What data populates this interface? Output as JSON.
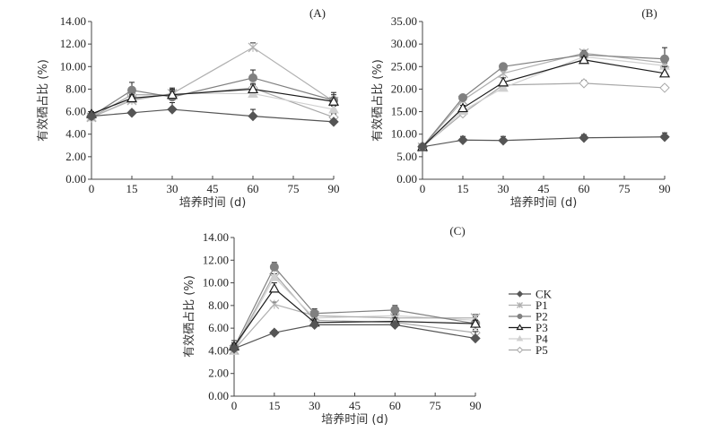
{
  "legend": {
    "entries": [
      {
        "name": "CK",
        "label": "CK",
        "marker": "diamond-filled",
        "color": "#555555"
      },
      {
        "name": "P1",
        "label": "P1",
        "marker": "cross",
        "color": "#b0b0b0"
      },
      {
        "name": "P2",
        "label": "P2",
        "marker": "circle-filled",
        "color": "#808080"
      },
      {
        "name": "P3",
        "label": "P3",
        "marker": "triangle-open",
        "color": "#1a1a1a"
      },
      {
        "name": "P4",
        "label": "P4",
        "marker": "triangle-filled",
        "color": "#d0d0d0"
      },
      {
        "name": "P5",
        "label": "P5",
        "marker": "diamond-open",
        "color": "#a8a8a8"
      }
    ]
  },
  "chart_data": [
    {
      "type": "line",
      "panel": "(A)",
      "title": "",
      "xlabel": "培养时间 (d)",
      "ylabel": "有效硒占比 (%)",
      "x": [
        0,
        15,
        30,
        60,
        90
      ],
      "xticks": [
        0,
        15,
        30,
        45,
        60,
        75,
        90
      ],
      "xtick_labels": [
        "0",
        "15",
        "30",
        "45",
        "60",
        "75",
        "90"
      ],
      "xlim": [
        0,
        90
      ],
      "ylim": [
        0,
        14
      ],
      "yticks": [
        0,
        2,
        4,
        6,
        8,
        10,
        12,
        14
      ],
      "ytick_labels": [
        "0.00",
        "2.00",
        "4.00",
        "6.00",
        "8.00",
        "10.00",
        "12.00",
        "14.00"
      ],
      "grid": false,
      "series": [
        {
          "name": "CK",
          "values": [
            5.6,
            5.9,
            6.2,
            5.6,
            5.1
          ],
          "errors": [
            0.3,
            0.2,
            0.6,
            0.6,
            0.2
          ]
        },
        {
          "name": "P1",
          "values": [
            5.5,
            7.0,
            7.6,
            11.7,
            6.9
          ],
          "errors": [
            0.2,
            0.4,
            0.4,
            0.4,
            0.3
          ]
        },
        {
          "name": "P2",
          "values": [
            5.6,
            7.9,
            7.3,
            9.0,
            7.0
          ],
          "errors": [
            0.2,
            0.7,
            0.8,
            0.7,
            0.5
          ]
        },
        {
          "name": "P3",
          "values": [
            5.8,
            7.2,
            7.5,
            8.0,
            6.9
          ],
          "errors": [
            0.2,
            0.3,
            0.3,
            0.5,
            0.8
          ]
        },
        {
          "name": "P4",
          "values": [
            5.5,
            7.1,
            7.6,
            7.6,
            6.2
          ],
          "errors": [
            0.2,
            0.3,
            0.3,
            0.3,
            0.3
          ]
        },
        {
          "name": "P5",
          "values": [
            5.5,
            7.5,
            7.5,
            8.1,
            5.5
          ],
          "errors": [
            0.2,
            0.3,
            0.3,
            0.3,
            0.3
          ]
        }
      ]
    },
    {
      "type": "line",
      "panel": "(B)",
      "title": "",
      "xlabel": "培养时间 (d)",
      "ylabel": "有效硒占比 (%)",
      "x": [
        0,
        15,
        30,
        60,
        90
      ],
      "xticks": [
        0,
        15,
        30,
        45,
        60,
        75,
        90
      ],
      "xtick_labels": [
        "0",
        "15",
        "30",
        "45",
        "60",
        "75",
        "90"
      ],
      "xlim": [
        0,
        90
      ],
      "ylim": [
        0,
        35
      ],
      "yticks": [
        0,
        5,
        10,
        15,
        20,
        25,
        30,
        35
      ],
      "ytick_labels": [
        "0.00",
        "5.00",
        "10.00",
        "15.00",
        "20.00",
        "25.00",
        "30.00",
        "35.00"
      ],
      "grid": false,
      "series": [
        {
          "name": "CK",
          "values": [
            7.2,
            8.7,
            8.6,
            9.2,
            9.4
          ],
          "errors": [
            0.3,
            0.8,
            0.9,
            0.7,
            0.9
          ]
        },
        {
          "name": "P1",
          "values": [
            7.1,
            17.5,
            23.5,
            28.0,
            25.8
          ],
          "errors": [
            0.3,
            0.5,
            0.6,
            0.6,
            0.6
          ]
        },
        {
          "name": "P2",
          "values": [
            7.2,
            18.1,
            25.0,
            27.6,
            26.7
          ],
          "errors": [
            0.3,
            0.5,
            0.4,
            0.6,
            2.5
          ]
        },
        {
          "name": "P3",
          "values": [
            7.2,
            15.8,
            21.5,
            26.5,
            23.5
          ],
          "errors": [
            0.3,
            0.6,
            1.0,
            0.6,
            1.5
          ]
        },
        {
          "name": "P4",
          "values": [
            7.0,
            15.2,
            20.3,
            27.2,
            25.2
          ],
          "errors": [
            0.3,
            0.5,
            0.5,
            0.6,
            0.6
          ]
        },
        {
          "name": "P5",
          "values": [
            7.2,
            14.6,
            20.9,
            21.3,
            20.3
          ],
          "errors": [
            0.3,
            0.5,
            0.5,
            0.6,
            0.5
          ]
        }
      ]
    },
    {
      "type": "line",
      "panel": "(C)",
      "title": "",
      "xlabel": "培养时间 (d)",
      "ylabel": "有效硒占比 (%)",
      "x": [
        0,
        15,
        30,
        60,
        90
      ],
      "xticks": [
        0,
        15,
        30,
        45,
        60,
        75,
        90
      ],
      "xtick_labels": [
        "0",
        "15",
        "30",
        "45",
        "60",
        "75",
        "90"
      ],
      "xlim": [
        0,
        90
      ],
      "ylim": [
        0,
        14
      ],
      "yticks": [
        0,
        2,
        4,
        6,
        8,
        10,
        12,
        14
      ],
      "ytick_labels": [
        "0.00",
        "2.00",
        "4.00",
        "6.00",
        "8.00",
        "10.00",
        "12.00",
        "14.00"
      ],
      "grid": false,
      "series": [
        {
          "name": "CK",
          "values": [
            4.2,
            5.6,
            6.3,
            6.3,
            5.1
          ],
          "errors": [
            0.3,
            0.2,
            0.2,
            0.2,
            0.6
          ]
        },
        {
          "name": "P1",
          "values": [
            4.1,
            8.1,
            7.1,
            6.9,
            6.9
          ],
          "errors": [
            0.3,
            0.2,
            0.3,
            0.3,
            0.3
          ]
        },
        {
          "name": "P2",
          "values": [
            4.3,
            11.4,
            7.3,
            7.6,
            6.4
          ],
          "errors": [
            0.3,
            0.4,
            0.4,
            0.4,
            0.3
          ]
        },
        {
          "name": "P3",
          "values": [
            4.4,
            9.5,
            6.5,
            6.6,
            6.4
          ],
          "errors": [
            0.3,
            0.5,
            0.3,
            0.3,
            0.3
          ]
        },
        {
          "name": "P4",
          "values": [
            4.0,
            10.5,
            6.9,
            7.1,
            6.7
          ],
          "errors": [
            0.9,
            0.3,
            0.3,
            0.3,
            0.3
          ]
        },
        {
          "name": "P5",
          "values": [
            4.1,
            10.8,
            6.7,
            6.5,
            5.6
          ],
          "errors": [
            0.3,
            0.3,
            0.3,
            0.3,
            0.3
          ]
        }
      ]
    }
  ]
}
